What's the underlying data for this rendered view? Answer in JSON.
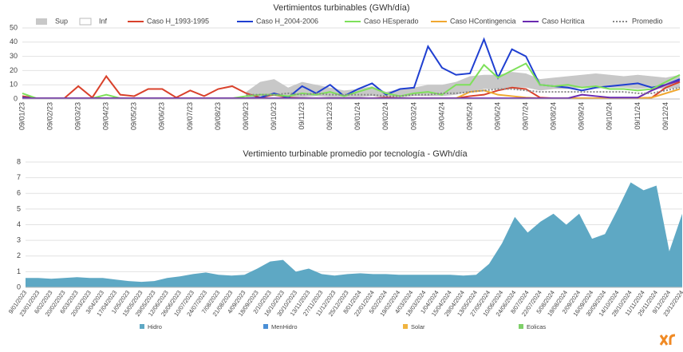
{
  "chart_data": [
    {
      "type": "line",
      "title": "Vertimientos turbinables  (GWh/día)",
      "categories": [
        "09/01/23",
        null,
        "09/02/23",
        null,
        "09/03/23",
        null,
        "09/04/23",
        null,
        "09/05/23",
        null,
        "09/06/23",
        null,
        "09/07/23",
        null,
        "09/08/23",
        null,
        "09/09/23",
        null,
        "09/10/23",
        null,
        "09/11/23",
        null,
        "09/12/23",
        null,
        "09/01/24",
        null,
        "09/02/24",
        null,
        "09/03/24",
        null,
        "09/04/24",
        null,
        "09/05/24",
        null,
        "09/06/24",
        null,
        "09/07/24",
        null,
        "09/08/24",
        null,
        "09/09/24",
        null,
        "09/10/24",
        null,
        "09/11/24",
        null,
        "09/12/24",
        null
      ],
      "ylim": [
        0,
        50
      ],
      "yticks": [
        0,
        10,
        20,
        30,
        40,
        50
      ],
      "grid": true,
      "series": [
        {
          "name": "Sup",
          "color": "#c8c8c8",
          "kind": "area",
          "values": [
            null,
            null,
            null,
            null,
            null,
            null,
            null,
            null,
            null,
            null,
            null,
            null,
            null,
            null,
            null,
            null,
            5,
            12,
            14,
            8,
            12,
            10,
            8,
            6,
            7,
            9,
            5,
            7,
            8,
            10,
            10,
            12,
            16,
            17,
            17,
            19,
            18,
            14,
            15,
            16,
            17,
            18,
            17,
            16,
            17,
            16,
            15,
            17
          ]
        },
        {
          "name": "Inf",
          "color": "#ffffff",
          "kind": "area",
          "values": [
            null,
            null,
            null,
            null,
            null,
            null,
            null,
            null,
            null,
            null,
            null,
            null,
            null,
            null,
            null,
            null,
            1,
            2,
            2,
            1,
            1,
            2,
            1,
            1,
            1,
            2,
            1,
            1,
            2,
            2,
            2,
            3,
            5,
            7,
            7,
            8,
            8,
            6,
            7,
            7,
            8,
            9,
            8,
            8,
            7,
            8,
            7,
            8
          ]
        },
        {
          "name": "Caso H_1993-1995",
          "color": "#d9412b",
          "values": [
            2,
            0.5,
            0.5,
            0.5,
            9,
            1,
            16,
            3,
            2,
            7,
            7,
            1,
            6,
            2,
            7,
            9,
            4,
            1,
            3,
            1,
            0.5,
            0.5,
            0.5,
            0.5,
            0.5,
            0.5,
            1,
            0.5,
            0.5,
            0.5,
            0.5,
            0.5,
            2,
            3,
            6,
            8,
            7,
            1,
            0.5,
            0.5,
            0.5,
            0.5,
            0.5,
            0.5,
            0.5,
            1,
            8,
            12
          ]
        },
        {
          "name": "Caso H_2004-2006",
          "color": "#1f3fd1",
          "values": [
            1,
            0.5,
            0.5,
            0.5,
            0.5,
            0.5,
            0.5,
            0.5,
            0.5,
            0.5,
            0.5,
            0.5,
            0.5,
            0.5,
            0.5,
            0.5,
            0.5,
            1,
            4,
            1,
            9,
            4,
            10,
            2,
            7,
            11,
            3,
            7,
            8,
            37,
            22,
            17,
            18,
            42,
            15,
            35,
            30,
            10,
            9,
            8,
            6,
            8,
            9,
            10,
            11,
            8,
            10,
            14
          ]
        },
        {
          "name": "Caso HEsperado",
          "color": "#7ee05a",
          "values": [
            4,
            0.5,
            0.5,
            0.5,
            0.5,
            0.5,
            3,
            0.5,
            0.5,
            0.5,
            0.5,
            0.5,
            0.5,
            0.5,
            0.5,
            0.5,
            2,
            3,
            3,
            2,
            4,
            3,
            5,
            2,
            5,
            8,
            4,
            2,
            4,
            5,
            3,
            10,
            10,
            24,
            15,
            20,
            25,
            10,
            9,
            10,
            8,
            9,
            7,
            7,
            6,
            7,
            12,
            17
          ]
        },
        {
          "name": "Caso HContingencia",
          "color": "#f0a830",
          "values": [
            0.5,
            0.5,
            0.5,
            0.5,
            0.5,
            0.5,
            0.5,
            0.5,
            0.5,
            0.5,
            0.5,
            0.5,
            0.5,
            0.5,
            0.5,
            0.5,
            0.5,
            0.5,
            0.5,
            0.5,
            0.5,
            0.5,
            0.5,
            0.5,
            0.5,
            0.5,
            0.5,
            0.5,
            0.5,
            0.5,
            0.5,
            0.5,
            5,
            6,
            3,
            2,
            1,
            0.5,
            0.5,
            0.5,
            0.5,
            0.5,
            0.5,
            0.5,
            0.5,
            1,
            4,
            7
          ]
        },
        {
          "name": "Caso Hcritica",
          "color": "#6a2ab0",
          "values": [
            0.5,
            0.5,
            0.5,
            0.5,
            0.5,
            0.5,
            0.5,
            0.5,
            0.5,
            0.5,
            0.5,
            0.5,
            0.5,
            0.5,
            0.5,
            0.5,
            0.5,
            0.5,
            0.5,
            0.5,
            0.5,
            0.5,
            0.5,
            0.5,
            0.5,
            0.5,
            0.5,
            0.5,
            0.5,
            0.5,
            0.5,
            0.5,
            0.5,
            0.5,
            0.5,
            0.5,
            0.5,
            0.5,
            0.5,
            0.5,
            3,
            2,
            1,
            1,
            1,
            6,
            10,
            13
          ]
        },
        {
          "name": "Promedio",
          "color": "#888888",
          "dashed": true,
          "values": [
            null,
            null,
            null,
            null,
            null,
            null,
            null,
            null,
            null,
            null,
            null,
            null,
            null,
            null,
            null,
            null,
            3,
            3,
            3,
            4,
            3,
            4,
            3,
            3,
            3,
            3,
            2,
            2,
            3,
            3,
            4,
            4,
            5,
            6,
            7,
            7,
            6,
            5,
            5,
            5,
            5,
            5,
            5,
            5,
            4,
            4,
            6,
            8
          ]
        }
      ]
    },
    {
      "type": "area",
      "stacked": true,
      "title": "Vertimiento turbinable promedio por tecnología - GWh/día",
      "categories": [
        "9/01/2023",
        "23/01/2023",
        "6/02/2023",
        "20/02/2023",
        "6/03/2023",
        "20/03/2023",
        "3/04/2023",
        "17/04/2023",
        "1/05/2023",
        "15/05/2023",
        "29/05/2023",
        "12/06/2023",
        "26/06/2023",
        "10/07/2023",
        "24/07/2023",
        "7/08/2023",
        "21/08/2023",
        "4/09/2023",
        "18/09/2023",
        "2/10/2023",
        "16/10/2023",
        "30/10/2023",
        "13/11/2023",
        "27/11/2023",
        "11/12/2023",
        "25/12/2023",
        "8/01/2024",
        "22/01/2024",
        "5/02/2024",
        "19/02/2024",
        "4/03/2024",
        "18/03/2024",
        "1/04/2024",
        "15/04/2024",
        "29/04/2024",
        "13/05/2024",
        "27/05/2024",
        "10/06/2024",
        "24/06/2024",
        "8/07/2024",
        "22/07/2024",
        "5/08/2024",
        "19/08/2024",
        "2/09/2024",
        "16/09/2024",
        "30/09/2024",
        "14/10/2024",
        "28/10/2024",
        "11/11/2024",
        "25/11/2024",
        "9/12/2024",
        "23/12/2024"
      ],
      "ylim": [
        0,
        8
      ],
      "yticks": [
        0,
        1,
        2,
        3,
        4,
        5,
        6,
        7,
        8
      ],
      "grid": true,
      "series": [
        {
          "name": "Hidro",
          "color": "#5ea8c4",
          "values": [
            0.6,
            0.6,
            0.55,
            0.6,
            0.65,
            0.6,
            0.6,
            0.5,
            0.4,
            0.35,
            0.4,
            0.6,
            0.7,
            0.85,
            0.95,
            0.8,
            0.75,
            0.8,
            1.2,
            1.65,
            1.75,
            1.0,
            1.2,
            0.85,
            0.75,
            0.85,
            0.9,
            0.85,
            0.85,
            0.8,
            0.8,
            0.8,
            0.8,
            0.8,
            0.75,
            0.8,
            1.5,
            2.8,
            4.5,
            3.5,
            4.2,
            4.7,
            4.0,
            4.7,
            3.1,
            3.4,
            5.0,
            6.7,
            6.2,
            6.5,
            2.3,
            4.7
          ]
        },
        {
          "name": "MenHidro",
          "color": "#4a8fd6",
          "values": [
            0,
            0,
            0,
            0,
            0,
            0,
            0,
            0,
            0,
            0,
            0,
            0,
            0,
            0,
            0,
            0,
            0,
            0,
            0,
            0,
            0,
            0,
            0,
            0,
            0,
            0,
            0,
            0,
            0,
            0,
            0,
            0,
            0,
            0,
            0,
            0,
            0,
            0,
            0,
            0,
            0,
            0,
            0,
            0,
            0,
            0,
            0,
            0,
            0,
            0,
            0,
            0
          ]
        },
        {
          "name": "Solar",
          "color": "#f0b440",
          "values": [
            0,
            0,
            0,
            0,
            0,
            0,
            0,
            0,
            0,
            0,
            0,
            0,
            0,
            0,
            0,
            0,
            0,
            0,
            0,
            0,
            0,
            0,
            0,
            0,
            0,
            0,
            0,
            0,
            0,
            0,
            0,
            0,
            0,
            0,
            0,
            0,
            0,
            0,
            0,
            0,
            0,
            0,
            0,
            0,
            0,
            0,
            0,
            0,
            0,
            0,
            0,
            0
          ]
        },
        {
          "name": "Eolicas",
          "color": "#7ed069",
          "values": [
            0,
            0,
            0,
            0,
            0,
            0,
            0,
            0,
            0,
            0,
            0,
            0,
            0,
            0,
            0,
            0,
            0,
            0,
            0,
            0,
            0,
            0,
            0,
            0,
            0,
            0,
            0,
            0,
            0,
            0,
            0,
            0,
            0,
            0,
            0,
            0,
            0,
            0,
            0,
            0,
            0,
            0,
            0,
            0,
            0,
            0,
            0,
            0,
            0,
            0,
            0,
            0
          ]
        }
      ]
    }
  ]
}
